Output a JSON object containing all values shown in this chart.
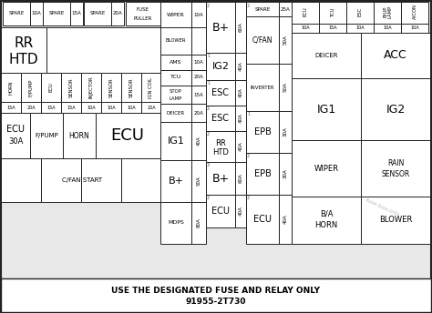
{
  "bg_color": "#e8e8e8",
  "border_color": "#222222",
  "title_line1": "USE THE DESIGNATED FUSE AND RELAY ONLY",
  "title_line2": "91955-2T730",
  "watermark": "fuse-box.info",
  "fig_width": 4.74,
  "fig_height": 3.44,
  "dpi": 100
}
